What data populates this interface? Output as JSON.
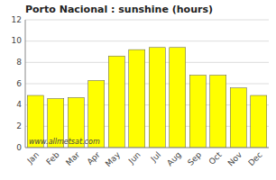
{
  "chart_data": {
    "type": "bar",
    "title": "Porto Nacional : sunshine (hours)",
    "categories": [
      "Jan",
      "Feb",
      "Mar",
      "Apr",
      "May",
      "Jun",
      "Jul",
      "Aug",
      "Sep",
      "Oct",
      "Nov",
      "Dec"
    ],
    "values": [
      4.9,
      4.6,
      4.7,
      6.3,
      8.6,
      9.2,
      9.4,
      9.4,
      6.8,
      6.8,
      5.6,
      4.9
    ],
    "color": "#ffff00",
    "ylim": [
      0,
      12
    ],
    "yticks": [
      0,
      2,
      4,
      6,
      8,
      10,
      12
    ],
    "grid": true,
    "annotations": [
      "www.allmetsat.com"
    ]
  }
}
